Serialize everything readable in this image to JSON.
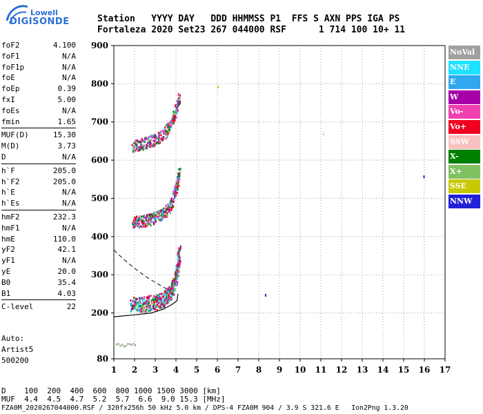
{
  "brand": {
    "line1": "Lowell",
    "line2": "DIGISONDE"
  },
  "header": {
    "labels": "Station   YYYY DAY   DDD HHMMSS P1  FFS S AXN PPS IGA PS",
    "values": "Fortaleza 2020 Set23 267 044000 RSF      1 714 100 10+ 11"
  },
  "params": [
    {
      "k": "foF2",
      "v": "4.100"
    },
    {
      "k": "foF1",
      "v": "N/A"
    },
    {
      "k": "foF1p",
      "v": "N/A"
    },
    {
      "k": "foE",
      "v": "N/A"
    },
    {
      "k": "foEp",
      "v": "0.39"
    },
    {
      "k": "fxI",
      "v": "5.00"
    },
    {
      "k": "foEs",
      "v": "N/A"
    },
    {
      "k": "fmin",
      "v": "1.65"
    },
    {
      "k": "MUF(D)",
      "v": "15.30"
    },
    {
      "k": "M(D)",
      "v": "3.73"
    },
    {
      "k": "D",
      "v": "N/A"
    },
    {
      "k": "h`F",
      "v": "205.0"
    },
    {
      "k": "h`F2",
      "v": "205.0"
    },
    {
      "k": "h`E",
      "v": "N/A"
    },
    {
      "k": "h`Es",
      "v": "N/A"
    },
    {
      "k": "hmF2",
      "v": "232.3"
    },
    {
      "k": "hmF1",
      "v": "N/A"
    },
    {
      "k": "hmE",
      "v": "110.0"
    },
    {
      "k": "yF2",
      "v": "42.1"
    },
    {
      "k": "yF1",
      "v": "N/A"
    },
    {
      "k": "yE",
      "v": "20.0"
    },
    {
      "k": "B0",
      "v": "35.4"
    },
    {
      "k": "B1",
      "v": "4.03"
    },
    {
      "k": "C-level",
      "v": "22"
    }
  ],
  "auto": {
    "line1": "Auto:",
    "line2": "Artist5",
    "line3": "500200"
  },
  "legend": [
    {
      "label": "NoVal",
      "color": "#a0a0a0"
    },
    {
      "label": "NNE",
      "color": "#1ee0ff"
    },
    {
      "label": "E",
      "color": "#30a8f0"
    },
    {
      "label": "W",
      "color": "#a800a8"
    },
    {
      "label": "Vo-",
      "color": "#f040b0"
    },
    {
      "label": "Vo+",
      "color": "#f00020"
    },
    {
      "label": "SSW",
      "color": "#f8c0c0"
    },
    {
      "label": "X-",
      "color": "#008000"
    },
    {
      "label": "X+",
      "color": "#80c060"
    },
    {
      "label": "SSE",
      "color": "#c8c800"
    },
    {
      "label": "NNW",
      "color": "#2020d8"
    }
  ],
  "footer": {
    "d_row": "D    100  200  400  600  800 1000 1500 3000 [km]",
    "muf_row": "MUF  4.4  4.5  4.7  5.2  5.7  6.6  9.0 15.3 [MHz]",
    "file_row": "FZA0M_2020267044000.RSF / 320fx256h 50 kHz 5.0 km / DPS-4 FZA0M 904 / 3.9 S 321.6 E   Ion2Png 1.3.20"
  },
  "chart_data": {
    "type": "scatter",
    "xlim": [
      1,
      17
    ],
    "ylim": [
      80,
      900
    ],
    "x_ticks": [
      1,
      2,
      3,
      4,
      5,
      6,
      7,
      8,
      9,
      10,
      11,
      12,
      13,
      14,
      15,
      16,
      17
    ],
    "y_ticks": [
      80,
      200,
      300,
      400,
      500,
      600,
      700,
      800,
      900
    ],
    "grid": true,
    "trace_echoes": [
      {
        "hop": 1,
        "x": [
          1.8,
          2.2,
          2.6,
          3.0,
          3.4,
          3.7,
          3.9,
          4.05,
          4.15
        ],
        "y": [
          212,
          212,
          214,
          218,
          226,
          242,
          262,
          300,
          350
        ]
      },
      {
        "hop": 2,
        "x": [
          1.9,
          2.3,
          2.8,
          3.3,
          3.7,
          4.0,
          4.15
        ],
        "y": [
          430,
          432,
          438,
          450,
          470,
          520,
          560
        ]
      },
      {
        "hop": 3,
        "x": [
          1.9,
          2.4,
          2.9,
          3.4,
          3.8,
          4.15
        ],
        "y": [
          630,
          635,
          645,
          660,
          690,
          760
        ]
      }
    ],
    "es_echo": {
      "x": [
        1.1,
        2.0
      ],
      "y": [
        118,
        118
      ]
    },
    "true_height_profile": {
      "x": [
        1.0,
        2.0,
        2.8,
        3.4,
        3.8,
        4.05,
        4.1
      ],
      "y": [
        190,
        195,
        200,
        210,
        222,
        232,
        250
      ]
    },
    "scattered_echoes": [
      {
        "x": 6.0,
        "y": 795,
        "color": "#c8c800"
      },
      {
        "x": 11.1,
        "y": 672,
        "color": "#f8c0c0"
      },
      {
        "x": 8.3,
        "y": 250,
        "color": "#2020d8"
      },
      {
        "x": 15.95,
        "y": 560,
        "color": "#2020d8"
      }
    ]
  }
}
